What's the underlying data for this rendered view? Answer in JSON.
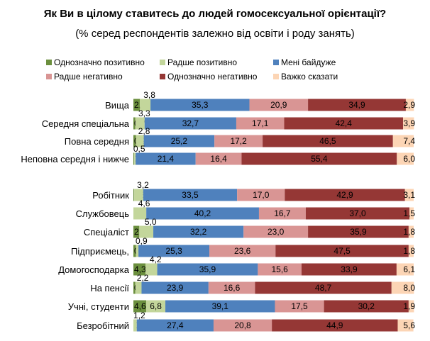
{
  "chart_data": {
    "type": "bar",
    "stacked": true,
    "orientation": "horizontal",
    "title": "Як Ви в цілому ставитесь до людей гомосексуальної орієнтації?",
    "subtitle": "(% серед респондентів залежно від освіти і роду занять)",
    "legend_position": "top",
    "categories": [
      "Вища",
      "Середня спеціальна",
      "Повна середня",
      "Неповна середня і нижче",
      "Робітник",
      "Службовець",
      "Спеціаліст",
      "Підприємець,",
      "Домогосподарка",
      "На пенсії",
      "Учні, студенти",
      "Безробітний"
    ],
    "groups": [
      [
        0,
        1,
        2,
        3
      ],
      [
        4,
        5,
        6,
        7,
        8,
        9,
        10,
        11
      ]
    ],
    "series": [
      {
        "name": "Однозначно позитивно",
        "color": "#6b8f3e",
        "values": [
          2.3,
          0.7,
          0.9,
          0.3,
          0.3,
          0.0,
          2.1,
          0.9,
          4.3,
          0.7,
          4.6,
          0.0
        ],
        "labels": [
          "2,3",
          "0,7",
          "0,9",
          "0,3",
          "0,3",
          "0,0",
          "2,1",
          "0,9",
          "4,3",
          "0,7",
          "4,6",
          "0,0"
        ]
      },
      {
        "name": "Радше позитивно",
        "color": "#c3d69b",
        "values": [
          3.8,
          3.3,
          2.8,
          0.5,
          3.2,
          4.6,
          5.0,
          0.9,
          4.2,
          2.2,
          6.8,
          1.2
        ],
        "labels": [
          "3,8",
          "3,3",
          "2,8",
          "0,5",
          "3,2",
          "4,6",
          "5,0",
          "0,9",
          "4,2",
          "2,2",
          "6,8",
          "1,2"
        ]
      },
      {
        "name": "Мені байдуже",
        "color": "#4f81bd",
        "values": [
          35.3,
          32.7,
          25.2,
          21.4,
          33.5,
          40.2,
          32.2,
          25.3,
          35.9,
          23.9,
          39.1,
          27.4
        ],
        "labels": [
          "35,3",
          "32,7",
          "25,2",
          "21,4",
          "33,5",
          "40,2",
          "32,2",
          "25,3",
          "35,9",
          "23,9",
          "39,1",
          "27,4"
        ]
      },
      {
        "name": "Радше негативно",
        "color": "#d99594",
        "values": [
          20.9,
          17.1,
          17.2,
          16.4,
          17.0,
          16.7,
          23.0,
          23.6,
          15.6,
          16.6,
          17.5,
          20.8
        ],
        "labels": [
          "20,9",
          "17,1",
          "17,2",
          "16,4",
          "17,0",
          "16,7",
          "23,0",
          "23,6",
          "15,6",
          "16,6",
          "17,5",
          "20,8"
        ]
      },
      {
        "name": "Однозначно негативно",
        "color": "#953735",
        "values": [
          34.9,
          42.4,
          46.5,
          55.4,
          42.9,
          37.0,
          35.9,
          47.5,
          33.9,
          48.7,
          30.2,
          44.9
        ],
        "labels": [
          "34,9",
          "42,4",
          "46,5",
          "55,4",
          "42,9",
          "37,0",
          "35,9",
          "47,5",
          "33,9",
          "48,7",
          "30,2",
          "44,9"
        ]
      },
      {
        "name": "Важко сказати",
        "color": "#fcd5b5",
        "values": [
          2.9,
          3.9,
          7.4,
          6.0,
          3.1,
          1.5,
          1.8,
          1.8,
          6.1,
          8.0,
          1.9,
          5.6
        ],
        "labels": [
          "2,9",
          "3,9",
          "7,4",
          "6,0",
          "3,1",
          "1,5",
          "1,8",
          "1,8",
          "6,1",
          "8,0",
          "1,9",
          "5,6"
        ]
      }
    ],
    "xlim": [
      0,
      100
    ]
  }
}
